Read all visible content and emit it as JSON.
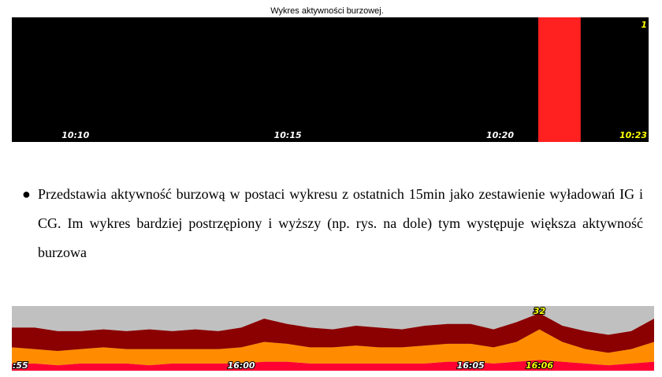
{
  "chart_data": [
    {
      "type": "bar",
      "title": "Wykres aktywności burzowej.",
      "categories": [
        null,
        "10:10",
        null,
        null,
        null,
        null,
        "10:15",
        null,
        null,
        null,
        null,
        "10:20",
        null,
        null,
        "10:23"
      ],
      "values": [
        0,
        0,
        0,
        0,
        0,
        0,
        0,
        0,
        0,
        0,
        0,
        0,
        1,
        0,
        0
      ],
      "color": "#ff2020",
      "background": "#000000",
      "ylim": [
        0,
        1
      ],
      "yticks": [
        1
      ]
    },
    {
      "type": "stacked-area",
      "categories": [
        ":55",
        null,
        null,
        null,
        null,
        null,
        null,
        null,
        null,
        null,
        "16:00",
        null,
        null,
        null,
        null,
        null,
        null,
        null,
        null,
        null,
        "16:05",
        null,
        null,
        "16:06",
        null,
        null,
        null,
        null,
        null
      ],
      "series": [
        {
          "color": "#ff0033",
          "values": [
            4,
            4,
            3,
            4,
            4,
            4,
            3,
            4,
            4,
            4,
            4,
            5,
            5,
            4,
            4,
            4,
            4,
            4,
            4,
            5,
            5,
            4,
            5,
            6,
            5,
            4,
            3,
            4,
            5
          ]
        },
        {
          "color": "#ff8c00",
          "values": [
            9,
            8,
            8,
            8,
            9,
            8,
            9,
            8,
            8,
            8,
            9,
            11,
            10,
            9,
            9,
            10,
            9,
            9,
            10,
            10,
            10,
            9,
            11,
            17,
            11,
            8,
            7,
            8,
            11
          ]
        },
        {
          "color": "#8b0000",
          "values": [
            11,
            12,
            11,
            10,
            10,
            10,
            11,
            10,
            11,
            10,
            11,
            13,
            11,
            11,
            10,
            11,
            11,
            10,
            11,
            11,
            11,
            10,
            11,
            9,
            9,
            10,
            10,
            10,
            13
          ]
        }
      ],
      "background": "#c0c0c0",
      "ylim": [
        0,
        36
      ],
      "annotation": "32"
    }
  ],
  "paragraph": "Przedstawia aktywność burzową w postaci wykresu z ostatnich 15min jako zestawienie wyładowań IG i CG. Im wykres bardziej postrzępiony i wyższy (np. rys. na dole) tym występuje większa aktywność burzowa"
}
